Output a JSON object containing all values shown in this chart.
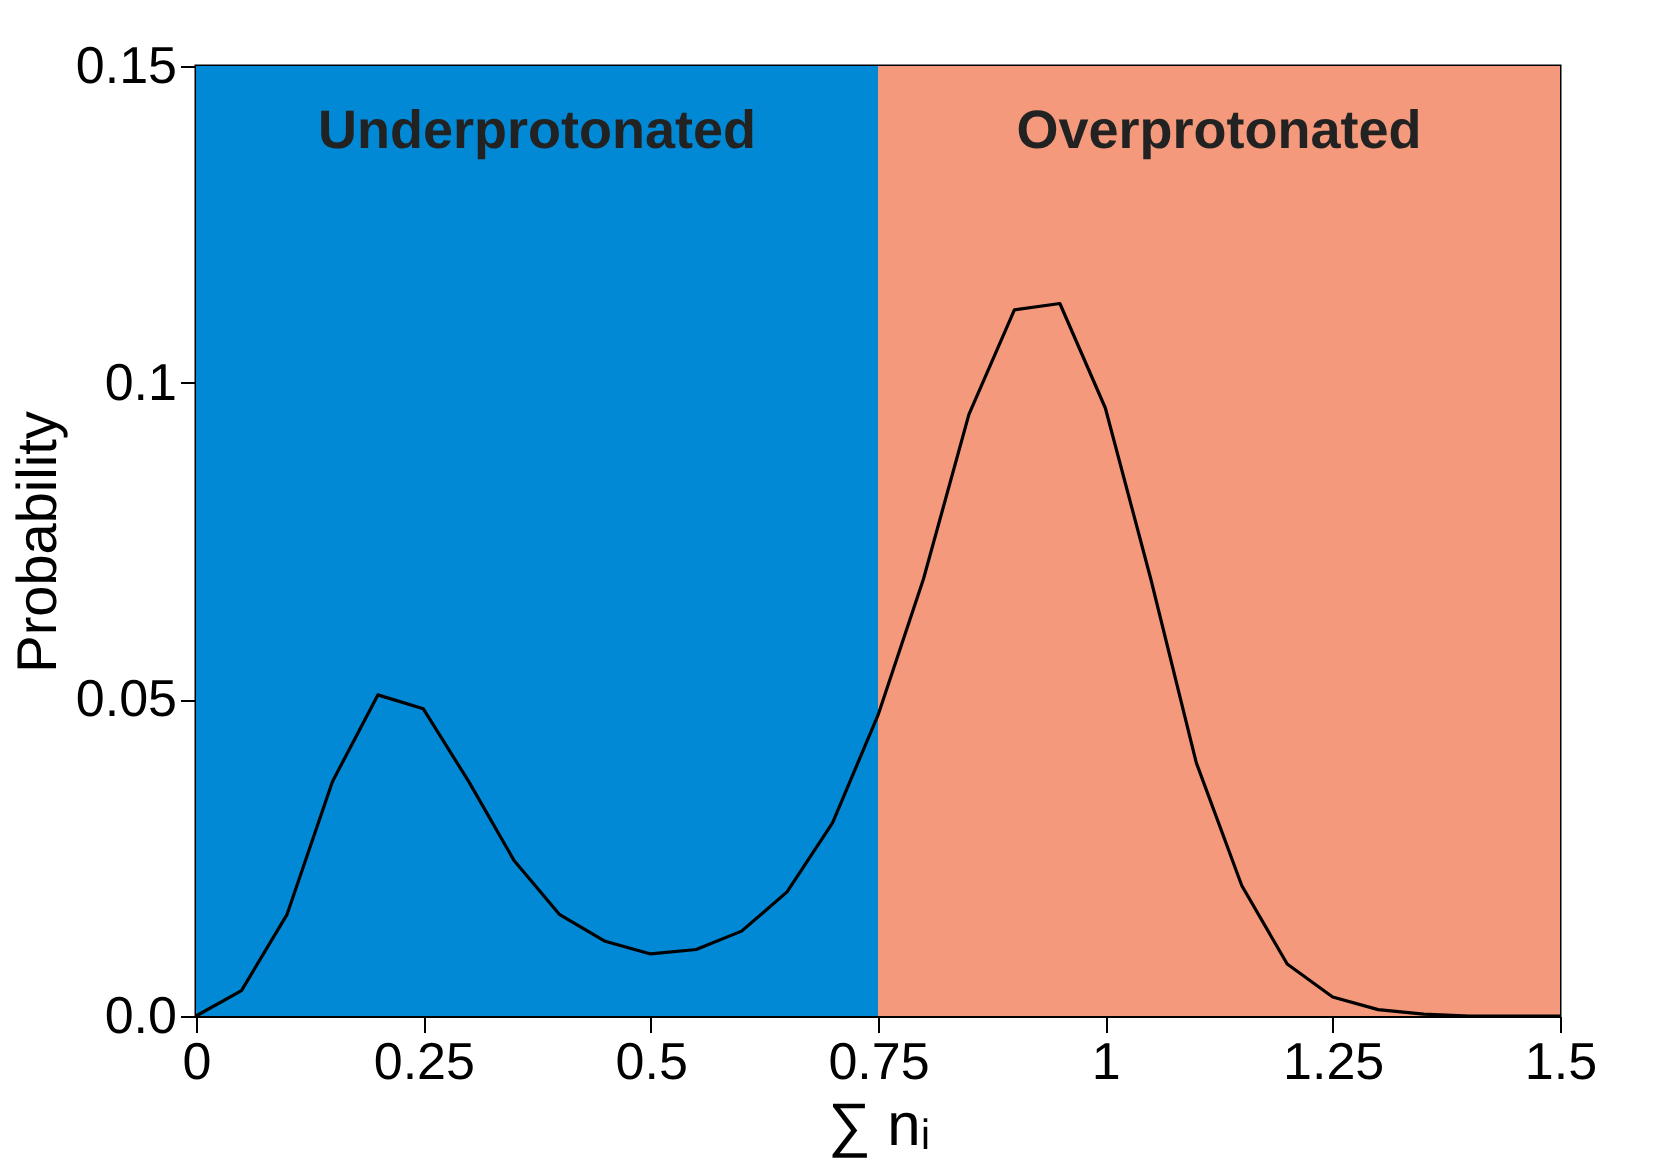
{
  "chart_data": {
    "type": "line",
    "xlabel": "∑ nᵢ",
    "ylabel": "Probability",
    "x": [
      0,
      0.05,
      0.1,
      0.15,
      0.2,
      0.25,
      0.3,
      0.35,
      0.4,
      0.45,
      0.5,
      0.55,
      0.6,
      0.65,
      0.7,
      0.75,
      0.8,
      0.85,
      0.9,
      0.95,
      1.0,
      1.05,
      1.1,
      1.15,
      1.2,
      1.25,
      1.3,
      1.35,
      1.4,
      1.45,
      1.5
    ],
    "series": [
      {
        "color": "#000000",
        "values": [
          0,
          0.004,
          0.016,
          0.037,
          0.0507,
          0.0485,
          0.037,
          0.0245,
          0.016,
          0.0118,
          0.0098,
          0.0105,
          0.0134,
          0.0196,
          0.0305,
          0.0475,
          0.069,
          0.095,
          0.1115,
          0.1125,
          0.096,
          0.069,
          0.04,
          0.0206,
          0.0082,
          0.003,
          0.001,
          0.0003,
          0,
          0,
          0
        ]
      }
    ],
    "xlim": [
      0,
      1.5
    ],
    "ylim": [
      0,
      0.15
    ],
    "xticks": [
      0,
      0.25,
      0.5,
      0.75,
      1,
      1.25,
      1.5
    ],
    "yticks": [
      {
        "value": 0,
        "label": "0.0"
      },
      0.05,
      0.1,
      0.15
    ],
    "bands": [
      {
        "axis": "x",
        "from": 0,
        "to": 0.75,
        "label": "Underprotonated",
        "color": "#0289d6"
      },
      {
        "axis": "x",
        "from": 0.75,
        "to": 1.5,
        "label": "Overprotonated",
        "color": "#f4997b"
      }
    ],
    "grid": false,
    "marker": "none",
    "line_style": "solid"
  }
}
